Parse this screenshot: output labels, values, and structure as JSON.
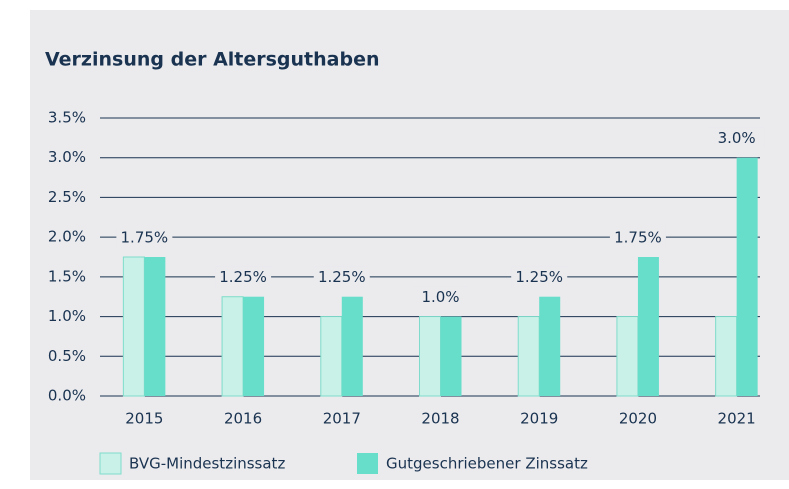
{
  "chart_data": {
    "type": "bar",
    "title": "Verzinsung der Altersguthaben",
    "categories": [
      "2015",
      "2016",
      "2017",
      "2018",
      "2019",
      "2020",
      "2021"
    ],
    "series": [
      {
        "name": "BVG-Mindestzinssatz",
        "color": "#c9f1e7",
        "values": [
          1.75,
          1.25,
          1.0,
          1.0,
          1.0,
          1.0,
          1.0
        ]
      },
      {
        "name": "Gutgeschriebener Zinssatz",
        "color": "#66dec9",
        "values": [
          1.75,
          1.25,
          1.25,
          1.0,
          1.25,
          1.75,
          3.0
        ],
        "value_labels": [
          "1.75%",
          "1.25%",
          "1.25%",
          "1.0%",
          "1.25%",
          "1.75%",
          "3.0%"
        ]
      }
    ],
    "ylim": [
      0,
      3.5
    ],
    "yticks": [
      {
        "value": 0,
        "label": "0.0%"
      },
      {
        "value": 0.5,
        "label": "0.5%"
      },
      {
        "value": 1,
        "label": "1.0%"
      },
      {
        "value": 1.5,
        "label": "1.5%"
      },
      {
        "value": 2,
        "label": "2.0%"
      },
      {
        "value": 2.5,
        "label": "2.5%"
      },
      {
        "value": 3,
        "label": "3.0%"
      },
      {
        "value": 3.5,
        "label": "3.5%"
      }
    ],
    "grid": true,
    "legend": "bottom"
  }
}
